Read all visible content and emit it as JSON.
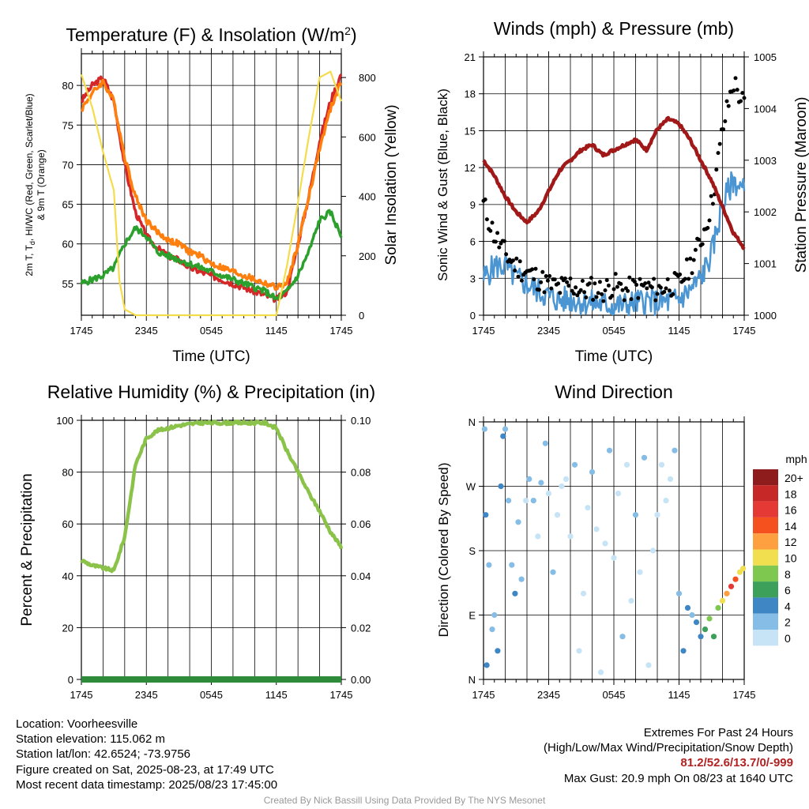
{
  "colors": {
    "t2m": "#d62728",
    "td": "#ee2b2b",
    "hiwc": "#2ca02c",
    "t9m": "#ff7f0e",
    "solar": "#f5dc4a",
    "sonic": "#4b96d2",
    "gust": "#000000",
    "pressure": "#a01818",
    "rh": "#8bc34a",
    "precip": "#2e8b3a",
    "grid": "#000000"
  },
  "panels": {
    "temp": {
      "title": "Temperature (F) & Insolation (W/m",
      "title_sup": "2",
      "title_end": ")",
      "ylabel": "2m T, Td, HI/WC (Red, Green, Scarlet/Blue) & 9m T (Orange)",
      "ylabel_line1": "2m T, T",
      "ylabel_sub": "d",
      "ylabel_line1b": ", HI/WC (Red, Green, Scarlet/Blue)",
      "ylabel_line2": "& 9m T (Orange)",
      "y2label": "Solar Insolation (Yellow)",
      "xlabel": "Time (UTC)"
    },
    "wind": {
      "title": "Winds (mph) & Pressure (mb)",
      "ylabel": "Sonic Wind & Gust (Blue, Black)",
      "y2label": "Station Pressure (Maroon)",
      "xlabel": "Time (UTC)"
    },
    "rh": {
      "title": "Relative Humidity (%) & Precipitation (in)",
      "ylabel": "Percent & Precipitation"
    },
    "dir": {
      "title": "Wind Direction",
      "ylabel": "Direction (Colored By Speed)",
      "legend_title": "mph",
      "legend_labels": [
        "20+",
        "18",
        "16",
        "14",
        "12",
        "10",
        "8",
        "6",
        "4",
        "2",
        "0"
      ],
      "legend_colors": [
        "#8e1c1c",
        "#c62828",
        "#e53935",
        "#f4511e",
        "#ffa040",
        "#f2df50",
        "#7ec850",
        "#3ca05a",
        "#3f86c4",
        "#85bde6",
        "#c6e4f6"
      ]
    }
  },
  "x_ticks": [
    "1745",
    "2345",
    "0545",
    "1145",
    "1745"
  ],
  "info": {
    "location": "Location: Voorheesville",
    "elevation": "Station elevation: 115.062 m",
    "latlon": "Station lat/lon: 42.6524; -73.9756",
    "created": "Figure created on Sat, 2025-08-23, at 17:49 UTC",
    "recent": "Most recent data timestamp: 2025/08/23 17:45:00",
    "extremes_title": "Extremes For Past 24 Hours",
    "extremes_sub": "(High/Low/Max Wind/Precipitation/Snow Depth)",
    "extremes_values": "81.2/52.6/13.7/0/-999",
    "max_gust": "Max Gust: 20.9 mph On 08/23 at 1640 UTC",
    "credit": "Created By Nick Bassill Using Data Provided By The NYS Mesonet"
  },
  "chart_data": [
    {
      "type": "line",
      "title": "Temperature (F) & Insolation (W/m2)",
      "xlabel": "Time (UTC)",
      "x_range_hours": [
        0,
        24
      ],
      "ylim": [
        51,
        84
      ],
      "yticks": [
        55,
        60,
        65,
        70,
        75,
        80
      ],
      "y2lim": [
        0,
        880
      ],
      "y2ticks": [
        0,
        200,
        400,
        600,
        800
      ],
      "series": [
        {
          "name": "2m T",
          "axis": "left",
          "x": [
            0,
            1,
            2,
            3,
            4,
            5,
            6,
            7,
            8,
            9,
            10,
            11,
            12,
            13,
            14,
            15,
            16,
            17,
            18,
            19,
            20,
            21,
            22,
            23,
            24
          ],
          "values": [
            78,
            80,
            81,
            78,
            70,
            64,
            61,
            59.5,
            58.5,
            58,
            57,
            56.5,
            56,
            55.5,
            55,
            54.5,
            54,
            53.5,
            53,
            54,
            60,
            66,
            73,
            78,
            81.5
          ]
        },
        {
          "name": "9m T",
          "axis": "left",
          "x": [
            0,
            1,
            2,
            3,
            4,
            5,
            6,
            7,
            8,
            9,
            10,
            11,
            12,
            13,
            14,
            15,
            16,
            17,
            18,
            19,
            20,
            21,
            22,
            23,
            24
          ],
          "values": [
            77,
            79,
            80.5,
            78,
            71,
            66,
            63,
            61.5,
            60.5,
            60,
            59,
            58.5,
            57.5,
            57,
            56.5,
            56,
            55.5,
            55,
            54.5,
            55,
            60,
            66,
            72,
            77,
            80.5
          ]
        },
        {
          "name": "Td",
          "axis": "left",
          "x": [
            0,
            1,
            2,
            3,
            4,
            5,
            6,
            7,
            8,
            9,
            10,
            11,
            12,
            13,
            14,
            15,
            16,
            17,
            18,
            19,
            20,
            21,
            22,
            23,
            24
          ],
          "values": [
            55,
            55.5,
            56,
            57,
            60,
            62,
            61,
            59,
            58.5,
            58,
            57.5,
            57,
            56.5,
            56,
            55.5,
            55,
            54.5,
            54,
            53,
            54,
            56,
            59,
            63,
            64,
            61
          ]
        },
        {
          "name": "Solar",
          "axis": "right",
          "x": [
            0,
            1,
            2,
            3,
            3.5,
            4,
            5,
            6,
            7,
            8,
            9,
            10,
            11,
            12,
            13,
            14,
            15,
            16,
            17,
            18,
            19,
            20,
            21,
            22,
            23,
            24
          ],
          "values": [
            810,
            700,
            550,
            420,
            120,
            20,
            0,
            0,
            0,
            0,
            0,
            0,
            0,
            0,
            0,
            0,
            0,
            0,
            0,
            0,
            170,
            380,
            600,
            800,
            820,
            720
          ]
        }
      ]
    },
    {
      "type": "line",
      "title": "Winds (mph) & Pressure (mb)",
      "xlabel": "Time (UTC)",
      "ylim": [
        0,
        21
      ],
      "yticks": [
        0,
        3,
        6,
        9,
        12,
        15,
        18,
        21
      ],
      "y2lim": [
        1000,
        1005
      ],
      "y2ticks": [
        1000,
        1001,
        1002,
        1003,
        1004,
        1005
      ],
      "series": [
        {
          "name": "Sonic Wind",
          "axis": "left",
          "x": [
            0,
            1,
            2,
            3,
            4,
            5,
            6,
            7,
            8,
            9,
            10,
            11,
            12,
            13,
            14,
            15,
            16,
            17,
            18,
            19,
            20,
            21,
            22,
            23,
            24
          ],
          "values": [
            3,
            4,
            4,
            3,
            2.5,
            2,
            1.5,
            1.2,
            1.3,
            1.1,
            1,
            0.9,
            0.8,
            0.8,
            1,
            1.2,
            1,
            1.1,
            1.3,
            2,
            3,
            5,
            9,
            11,
            10
          ]
        },
        {
          "name": "Gust",
          "axis": "left",
          "x": [
            0,
            1,
            2,
            3,
            4,
            5,
            6,
            7,
            8,
            9,
            10,
            11,
            12,
            13,
            14,
            15,
            16,
            17,
            18,
            19,
            20,
            21,
            22,
            23,
            24
          ],
          "values": [
            9,
            6.5,
            5,
            4,
            3.5,
            3,
            2.5,
            2.2,
            2.5,
            2,
            2.2,
            2,
            2.5,
            2,
            2.2,
            2.3,
            2,
            2.5,
            2.5,
            4,
            6,
            9,
            15,
            19,
            17
          ]
        },
        {
          "name": "Pressure",
          "axis": "right",
          "x": [
            0,
            1,
            2,
            3,
            4,
            5,
            6,
            7,
            8,
            9,
            10,
            11,
            12,
            13,
            14,
            15,
            16,
            17,
            18,
            19,
            20,
            21,
            22,
            23,
            24
          ],
          "values": [
            1003,
            1002.7,
            1002.3,
            1002,
            1001.8,
            1002,
            1002.4,
            1002.8,
            1003,
            1003.2,
            1003.3,
            1003.1,
            1003.2,
            1003.3,
            1003.4,
            1003.2,
            1003.6,
            1003.8,
            1003.7,
            1003.4,
            1003,
            1002.6,
            1002.1,
            1001.6,
            1001.3
          ]
        }
      ]
    },
    {
      "type": "line",
      "title": "Relative Humidity (%) & Precipitation (in)",
      "ylim": [
        0,
        100
      ],
      "yticks": [
        0,
        20,
        40,
        60,
        80,
        100
      ],
      "y2lim": [
        0,
        0.1
      ],
      "y2ticks": [
        "0.00",
        "0.02",
        "0.04",
        "0.06",
        "0.08",
        "0.10"
      ],
      "series": [
        {
          "name": "RH",
          "axis": "left",
          "x": [
            0,
            1,
            2,
            3,
            4,
            5,
            6,
            7,
            8,
            9,
            10,
            11,
            12,
            13,
            14,
            15,
            16,
            17,
            18,
            19,
            20,
            21,
            22,
            23,
            24
          ],
          "values": [
            46,
            44,
            43,
            42,
            55,
            83,
            93,
            96,
            97,
            98,
            98.5,
            99,
            99,
            99,
            99,
            99,
            99,
            99,
            97,
            88,
            80,
            72,
            65,
            57,
            51
          ]
        },
        {
          "name": "Precip",
          "axis": "right",
          "x": [
            0,
            24
          ],
          "values": [
            0,
            0
          ]
        }
      ]
    },
    {
      "type": "scatter",
      "title": "Wind Direction",
      "ylabel": "Direction (Colored By Speed)",
      "ycategories": [
        "N",
        "E",
        "S",
        "W",
        "N"
      ],
      "ylim_deg": [
        0,
        360
      ],
      "series": [
        {
          "name": "Direction",
          "x": [
            0.1,
            0.2,
            0.3,
            0.5,
            0.8,
            1.0,
            1.3,
            1.6,
            1.8,
            2.0,
            2.3,
            2.6,
            2.9,
            3.2,
            3.5,
            3.9,
            4.2,
            4.6,
            5.0,
            5.3,
            5.7,
            6.0,
            6.4,
            6.8,
            7.2,
            7.6,
            8.0,
            8.4,
            8.8,
            9.2,
            9.6,
            10.0,
            10.4,
            10.8,
            11.2,
            11.6,
            12.0,
            12.4,
            12.8,
            13.2,
            13.6,
            14.0,
            14.4,
            14.8,
            15.2,
            15.6,
            16.0,
            16.4,
            16.8,
            17.2,
            17.6,
            18.0,
            18.4,
            18.8,
            19.2,
            19.6,
            20.0,
            20.4,
            20.8,
            21.2,
            21.6,
            22.0,
            22.4,
            22.8,
            23.2,
            23.6,
            23.9
          ],
          "values": [
            350,
            230,
            20,
            160,
            70,
            90,
            40,
            270,
            340,
            350,
            250,
            160,
            120,
            220,
            140,
            250,
            280,
            250,
            200,
            275,
            330,
            260,
            150,
            230,
            270,
            280,
            200,
            300,
            40,
            120,
            240,
            290,
            210,
            10,
            190,
            320,
            170,
            260,
            60,
            300,
            110,
            230,
            150,
            310,
            20,
            180,
            230,
            300,
            250,
            280,
            320,
            120,
            40,
            100,
            90,
            80,
            60,
            70,
            85,
            60,
            100,
            110,
            120,
            130,
            140,
            150,
            155
          ],
          "speeds": [
            3,
            4,
            4,
            3,
            2,
            3,
            4,
            5,
            4,
            3,
            2,
            3,
            4,
            3,
            2,
            1,
            2,
            3,
            1,
            2,
            3,
            1,
            2,
            1,
            1,
            0,
            1,
            2,
            1,
            0,
            1,
            2,
            1,
            0,
            1,
            2,
            1,
            1,
            2,
            1,
            1,
            2,
            1,
            2,
            1,
            1,
            1,
            1,
            1,
            1,
            2,
            3,
            4,
            4,
            3,
            4,
            5,
            6,
            8,
            7,
            9,
            10,
            12,
            16,
            14,
            11,
            10
          ]
        }
      ]
    }
  ]
}
